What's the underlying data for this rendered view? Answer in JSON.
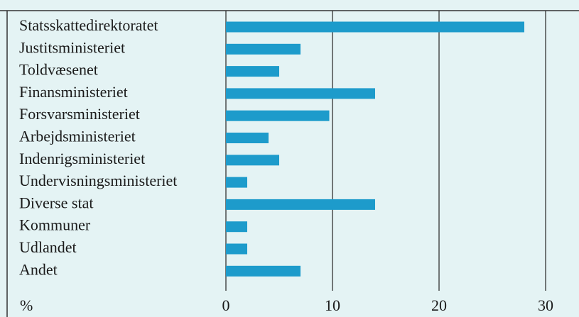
{
  "chart_data": {
    "type": "hbar",
    "categories": [
      "Statsskattedirektoratet",
      "Justitsministeriet",
      "Toldvæsenet",
      "Finansministeriet",
      "Forsvarsministeriet",
      "Arbejdsministeriet",
      "Indenrigsministeriet",
      "Undervisningsministeriet",
      "Diverse stat",
      "Kommuner",
      "Udlandet",
      "Andet"
    ],
    "values": [
      28,
      7,
      5,
      14,
      9.7,
      4,
      5,
      2,
      14,
      2,
      2,
      7
    ],
    "color": "#1d9bcb",
    "x_label": "%",
    "xlim": [
      0,
      32
    ],
    "xticks": [
      0,
      10,
      20,
      30
    ],
    "grid": true
  }
}
